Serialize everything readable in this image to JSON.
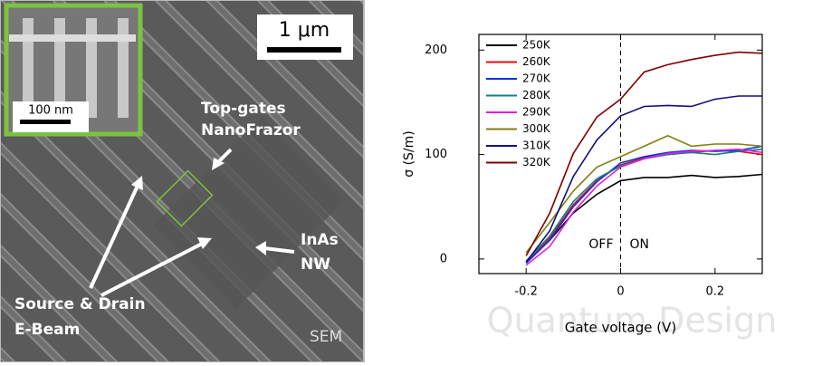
{
  "sem_image": {
    "scale_bar": "1 μm",
    "inset_scale_bar": "100 nm",
    "top_gates": [
      "Top-gates",
      "NanoFrazor"
    ],
    "nanowire": [
      "InAs",
      "NW"
    ],
    "source_drain": [
      "Source & Drain",
      "E-Beam"
    ],
    "mode": "SEM"
  },
  "watermark": "Quantum Design",
  "chart_data": {
    "type": "line",
    "xlabel": "Gate voltage (V)",
    "ylabel": "σ (S/m)",
    "x": [
      -0.2,
      -0.15,
      -0.1,
      -0.05,
      0,
      0.05,
      0.1,
      0.15,
      0.2,
      0.25,
      0.3
    ],
    "series": [
      {
        "name": "250K",
        "color": "#000000",
        "values": [
          -3,
          18,
          44,
          62,
          75,
          78,
          78,
          80,
          78,
          79,
          81
        ]
      },
      {
        "name": "260K",
        "color": "#e01010",
        "values": [
          -3,
          20,
          52,
          75,
          90,
          97,
          100,
          102,
          104,
          103,
          100
        ]
      },
      {
        "name": "270K",
        "color": "#1030e0",
        "values": [
          -4,
          18,
          50,
          74,
          92,
          98,
          102,
          104,
          103,
          104,
          108
        ]
      },
      {
        "name": "280K",
        "color": "#108080",
        "values": [
          -2,
          22,
          55,
          77,
          89,
          96,
          100,
          102,
          100,
          103,
          105
        ]
      },
      {
        "name": "290K",
        "color": "#e020e0",
        "values": [
          -6,
          12,
          45,
          70,
          88,
          96,
          101,
          103,
          104,
          105,
          102
        ]
      },
      {
        "name": "300K",
        "color": "#808010",
        "values": [
          6,
          35,
          65,
          88,
          98,
          108,
          118,
          108,
          110,
          110,
          108
        ]
      },
      {
        "name": "310K",
        "color": "#101080",
        "values": [
          -3,
          27,
          79,
          114,
          137,
          146,
          147,
          146,
          153,
          156,
          156
        ]
      },
      {
        "name": "320K",
        "color": "#800000",
        "values": [
          3,
          44,
          101,
          136,
          153,
          179,
          186,
          191,
          195,
          198,
          197
        ]
      }
    ],
    "xlim": [
      -0.3,
      0.3
    ],
    "xticks": [
      -0.2,
      0,
      0.2
    ],
    "ylim": [
      -14,
      215
    ],
    "yticks": [
      0,
      100,
      200
    ],
    "vline_x": 0,
    "annotations": [
      "OFF",
      "ON"
    ],
    "legend": "upper left"
  }
}
